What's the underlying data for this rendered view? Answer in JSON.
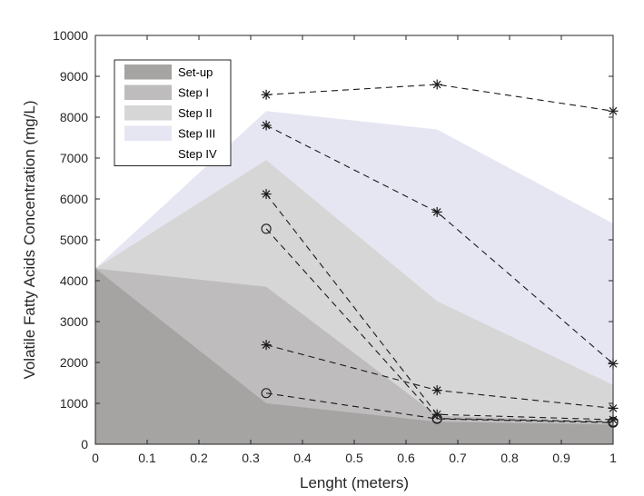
{
  "chart_data": {
    "type": "area",
    "title": "",
    "xlabel": "Lenght (meters)",
    "ylabel": "Volatile Fatty Acids Concentration (mg/L)",
    "xlim": [
      0,
      1
    ],
    "ylim": [
      0,
      10000
    ],
    "xticks": [
      0,
      0.1,
      0.2,
      0.3,
      0.4,
      0.5,
      0.6,
      0.7,
      0.8,
      0.9,
      1
    ],
    "xtick_labels": [
      "0",
      "0.1",
      "0.2",
      "0.3",
      "0.4",
      "0.5",
      "0.6",
      "0.7",
      "0.8",
      "0.9",
      "1"
    ],
    "yticks": [
      0,
      1000,
      2000,
      3000,
      4000,
      5000,
      6000,
      7000,
      8000,
      9000,
      10000
    ],
    "ytick_labels": [
      "0",
      "1000",
      "2000",
      "3000",
      "4000",
      "5000",
      "6000",
      "7000",
      "8000",
      "9000",
      "10000"
    ],
    "grid": false,
    "legend_position": "top-left",
    "x": [
      0,
      0.33,
      0.66,
      1
    ],
    "series": [
      {
        "name": "Set-up",
        "values": [
          4300,
          1000,
          550,
          480
        ],
        "color": "#a6a3a3"
      },
      {
        "name": "Step I",
        "values": [
          4300,
          3850,
          700,
          550
        ],
        "color": "#bebcbc"
      },
      {
        "name": "Step II",
        "values": [
          4300,
          6950,
          3500,
          1450
        ],
        "color": "#d7d6d6"
      },
      {
        "name": "Step III",
        "values": [
          4300,
          8150,
          7700,
          5400
        ],
        "color": "#e6e6f3"
      },
      {
        "name": "Step IV",
        "values": [
          4300,
          8150,
          7700,
          5400
        ],
        "color": "#ffffff"
      }
    ],
    "dashed_lines": [
      {
        "marker": "asterisk",
        "points": [
          [
            0.33,
            8550
          ],
          [
            0.66,
            8800
          ],
          [
            1,
            8150
          ]
        ]
      },
      {
        "marker": "asterisk",
        "points": [
          [
            0.33,
            7800
          ],
          [
            0.66,
            5680
          ],
          [
            1,
            1970
          ]
        ]
      },
      {
        "marker": "asterisk",
        "points": [
          [
            0.33,
            6120
          ],
          [
            0.66,
            730
          ],
          [
            1,
            600
          ]
        ]
      },
      {
        "marker": "asterisk",
        "points": [
          [
            0.33,
            2430
          ],
          [
            0.66,
            1320
          ],
          [
            1,
            880
          ]
        ]
      },
      {
        "marker": "circle",
        "points": [
          [
            0.33,
            5270
          ],
          [
            0.66,
            630
          ],
          [
            1,
            550
          ]
        ]
      },
      {
        "marker": "circle",
        "points": [
          [
            0.33,
            1250
          ],
          [
            0.66,
            620
          ],
          [
            1,
            530
          ]
        ]
      }
    ]
  }
}
